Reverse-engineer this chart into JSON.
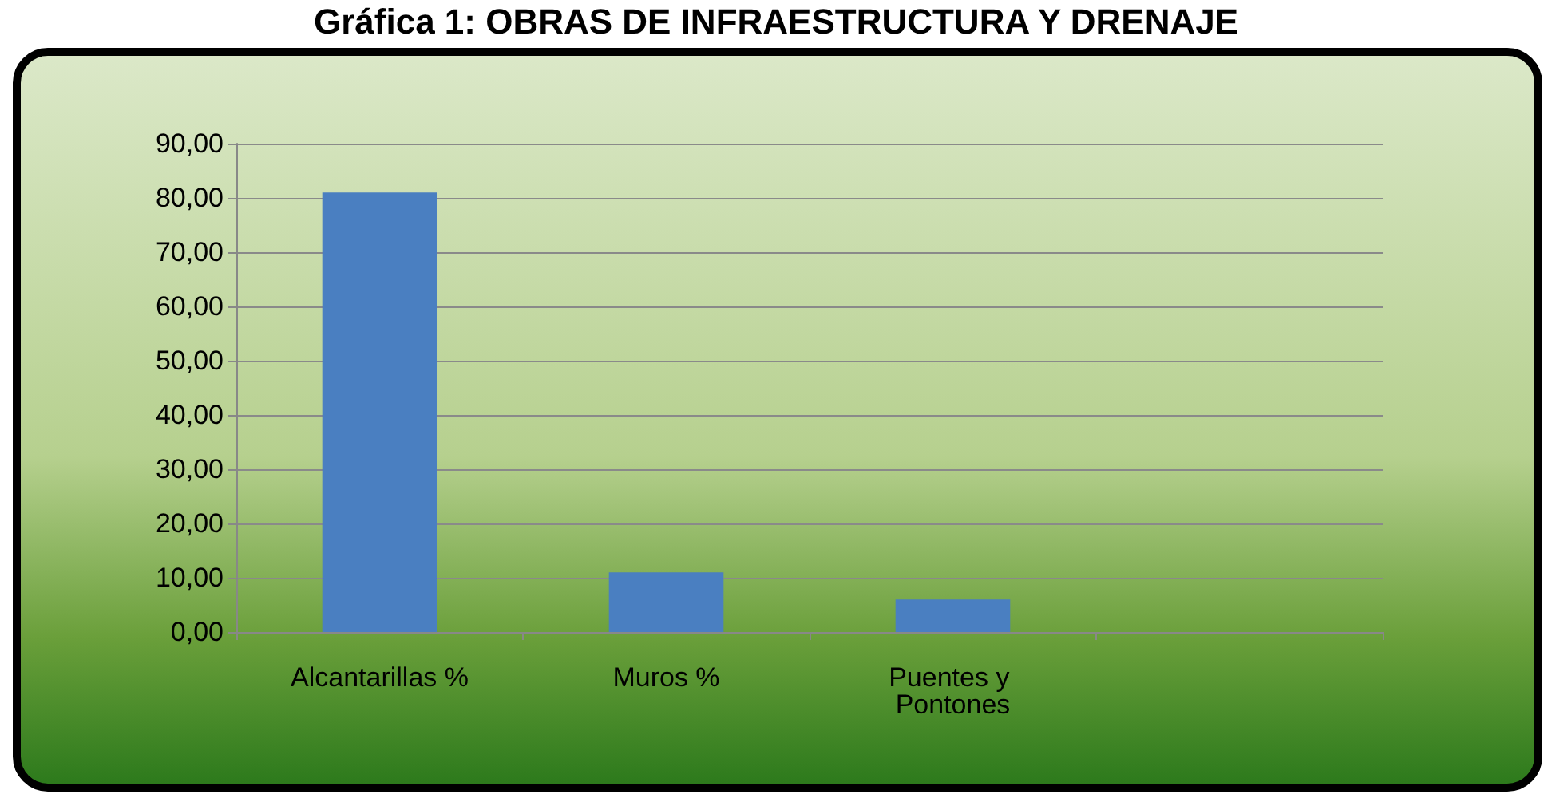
{
  "chart_data": {
    "type": "bar",
    "title": "Gráfica 1: OBRAS DE INFRAESTRUCTURA Y DRENAJE",
    "categories": [
      "Alcantarillas %",
      "Muros %",
      "Puentes y Pontones",
      null
    ],
    "values": [
      81,
      11,
      6,
      null
    ],
    "color": "#4a7fc1",
    "ylim": [
      0,
      90
    ],
    "yticks": [
      {
        "value": 0,
        "label": "0,00"
      },
      {
        "value": 10,
        "label": "10,00"
      },
      {
        "value": 20,
        "label": "20,00"
      },
      {
        "value": 30,
        "label": "30,00"
      },
      {
        "value": 40,
        "label": "40,00"
      },
      {
        "value": 50,
        "label": "50,00"
      },
      {
        "value": 60,
        "label": "60,00"
      },
      {
        "value": 70,
        "label": "70,00"
      },
      {
        "value": 80,
        "label": "80,00"
      },
      {
        "value": 90,
        "label": "90,00"
      }
    ],
    "grid": true
  }
}
